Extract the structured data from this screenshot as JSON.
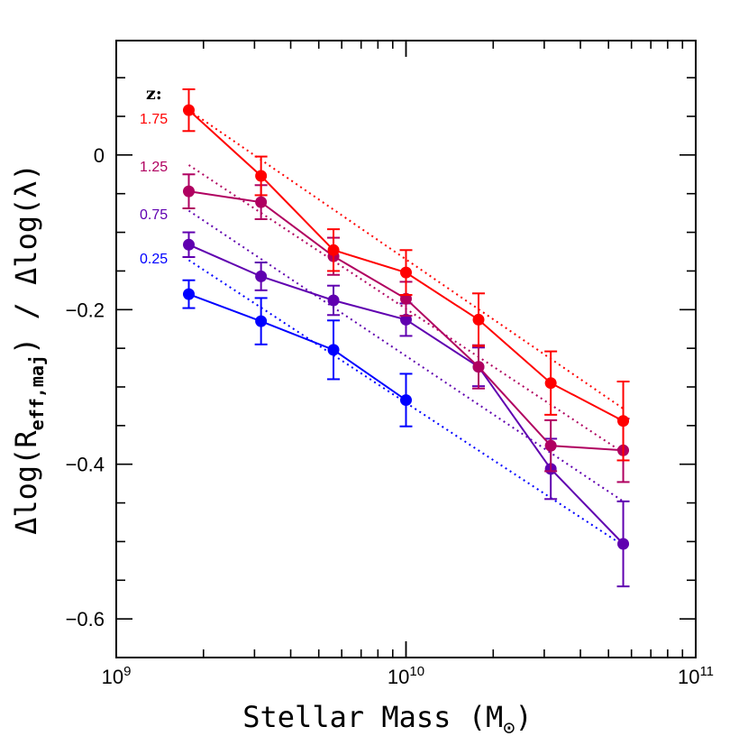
{
  "chart_data": {
    "type": "line",
    "title": "",
    "xlabel": "Stellar Mass (M",
    "xlabel_sub": "⊙",
    "xlabel_close": ")",
    "ylabel": "Δlog(R",
    "ylabel_sub": "eff,maj",
    "ylabel_rest": ") / Δlog(λ)",
    "xscale": "log",
    "xlim": [
      1000000000.0,
      100000000000.0
    ],
    "ylim": [
      -0.65,
      0.148
    ],
    "x_ticks": [
      {
        "base": "10",
        "exp": "9"
      },
      {
        "base": "10",
        "exp": "10"
      },
      {
        "base": "10",
        "exp": "11"
      }
    ],
    "y_ticks": [
      "0",
      "−0.2",
      "−0.4",
      "−0.6"
    ],
    "y_tick_values": [
      0,
      -0.2,
      -0.4,
      -0.6
    ],
    "legend_title": "z:",
    "series": [
      {
        "name": "1.75",
        "color": "#ff0000",
        "x": [
          1780000000.0,
          3160000000.0,
          5620000000.0,
          10000000000.0,
          17800000000.0,
          31600000000.0,
          56200000000.0
        ],
        "y": [
          0.058,
          -0.027,
          -0.123,
          -0.152,
          -0.213,
          -0.295,
          -0.344
        ],
        "err": [
          0.027,
          0.025,
          0.027,
          0.029,
          0.034,
          0.041,
          0.051
        ],
        "fit": {
          "x": [
            1780000000.0,
            56200000000.0
          ],
          "y": [
            0.058,
            -0.328
          ]
        }
      },
      {
        "name": "1.25",
        "color": "#b00060",
        "x": [
          1780000000.0,
          3160000000.0,
          5620000000.0,
          10000000000.0,
          17800000000.0,
          31600000000.0,
          56200000000.0
        ],
        "y": [
          -0.047,
          -0.061,
          -0.131,
          -0.186,
          -0.274,
          -0.376,
          -0.382
        ],
        "err": [
          0.022,
          0.022,
          0.024,
          0.022,
          0.028,
          0.033,
          0.041
        ],
        "fit": {
          "x": [
            1780000000.0,
            56200000000.0
          ],
          "y": [
            -0.013,
            -0.385
          ]
        }
      },
      {
        "name": "0.75",
        "color": "#6000b0",
        "x": [
          1780000000.0,
          3160000000.0,
          5620000000.0,
          10000000000.0,
          17800000000.0,
          31600000000.0,
          56200000000.0
        ],
        "y": [
          -0.116,
          -0.157,
          -0.188,
          -0.213,
          -0.274,
          -0.406,
          -0.503
        ],
        "err": [
          0.016,
          0.018,
          0.019,
          0.021,
          0.025,
          0.039,
          0.055
        ],
        "fit": {
          "x": [
            1780000000.0,
            56200000000.0
          ],
          "y": [
            -0.072,
            -0.448
          ]
        }
      },
      {
        "name": "0.25",
        "color": "#0000ff",
        "x": [
          1780000000.0,
          3160000000.0,
          5620000000.0,
          10000000000.0
        ],
        "y": [
          -0.18,
          -0.215,
          -0.252,
          -0.317
        ],
        "err": [
          0.018,
          0.03,
          0.038,
          0.034
        ],
        "fit": {
          "x": [
            1780000000.0,
            56200000000.0
          ],
          "y": [
            -0.136,
            -0.505
          ]
        }
      }
    ]
  }
}
